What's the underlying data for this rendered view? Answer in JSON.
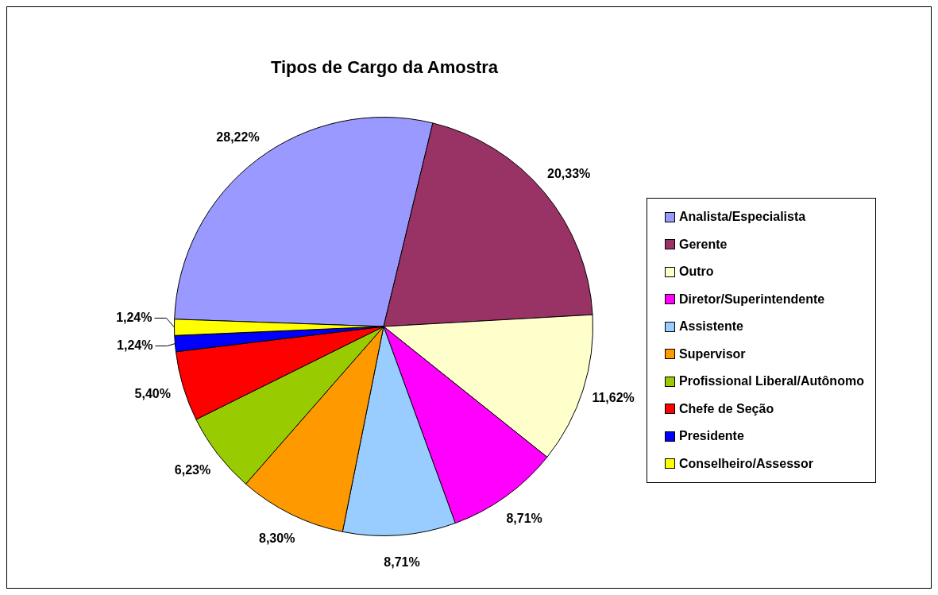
{
  "chart_data": {
    "type": "pie",
    "title": "Tipos de Cargo da Amostra",
    "categories": [
      "Analista/Especialista",
      "Gerente",
      "Outro",
      "Diretor/Superintendente",
      "Assistente",
      "Supervisor",
      "Profissional Liberal/Autônomo",
      "Chefe de Seção",
      "Presidente",
      "Conselheiro/Assessor"
    ],
    "values": [
      28.22,
      20.33,
      11.62,
      8.71,
      8.71,
      8.3,
      6.23,
      5.4,
      1.24,
      1.24
    ],
    "colors": [
      "#9999ff",
      "#993366",
      "#ffffcc",
      "#ff00ff",
      "#99ccff",
      "#ff9900",
      "#99cc00",
      "#ff0000",
      "#0000ff",
      "#ffff00"
    ],
    "value_labels": [
      "28,22%",
      "20,33%",
      "11,62%",
      "8,71%",
      "8,71%",
      "8,30%",
      "6,23%",
      "5,40%",
      "1,24%",
      "1,24%"
    ],
    "legend": "right"
  }
}
